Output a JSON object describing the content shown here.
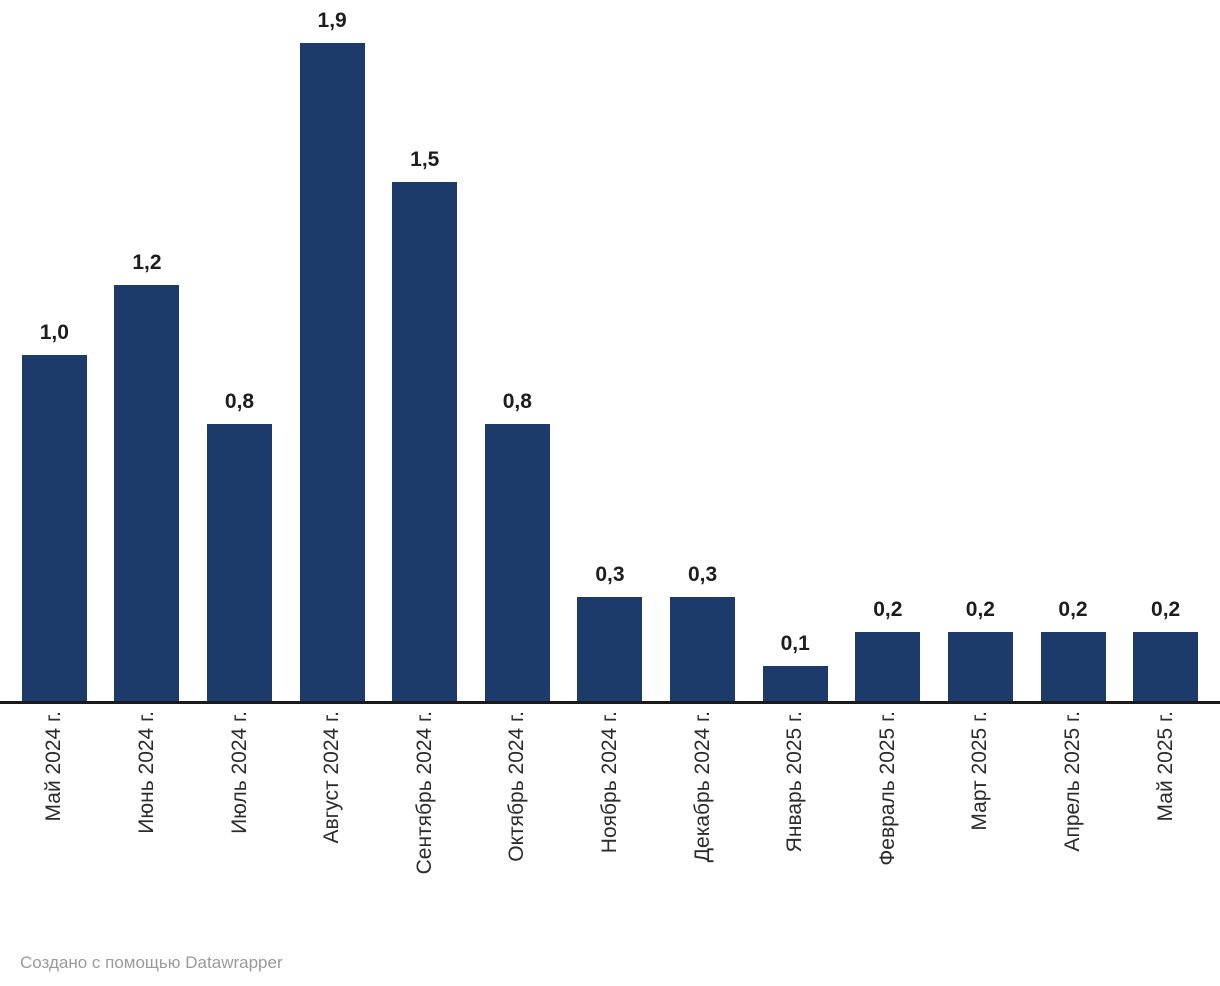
{
  "chart_data": {
    "type": "bar",
    "categories": [
      "Май 2024 г.",
      "Июнь 2024 г.",
      "Июль 2024 г.",
      "Август 2024 г.",
      "Сентябрь 2024 г.",
      "Октябрь 2024 г.",
      "Ноябрь 2024 г.",
      "Декабрь 2024 г.",
      "Январь 2025 г.",
      "Февраль 2025 г.",
      "Март 2025 г.",
      "Апрель 2025 г.",
      "Май 2025 г."
    ],
    "values": [
      1.0,
      1.2,
      0.8,
      1.9,
      1.5,
      0.8,
      0.3,
      0.3,
      0.1,
      0.2,
      0.2,
      0.2,
      0.2
    ],
    "value_labels": [
      "1,0",
      "1,2",
      "0,8",
      "1,9",
      "1,5",
      "0,8",
      "0,3",
      "0,3",
      "0,1",
      "0,2",
      "0,2",
      "0,2",
      "0,2"
    ],
    "title": "",
    "xlabel": "",
    "ylabel": "",
    "ylim": [
      0,
      1.9
    ],
    "grid": false,
    "legend": false,
    "value_label_position": "above-bars",
    "x_tick_rotation": -90,
    "bar_color": "#1C3A6A"
  },
  "footer": {
    "prefix": "Создано с помощью",
    "link": "Datawrapper"
  },
  "colors": {
    "bar": "#1C3A6A",
    "axis_line": "#1A1A1A",
    "value_label": "#1D1D1D",
    "tick_label": "#2B2B2B",
    "footer_text": "#9A9A9A",
    "background": "#FFFFFF"
  }
}
